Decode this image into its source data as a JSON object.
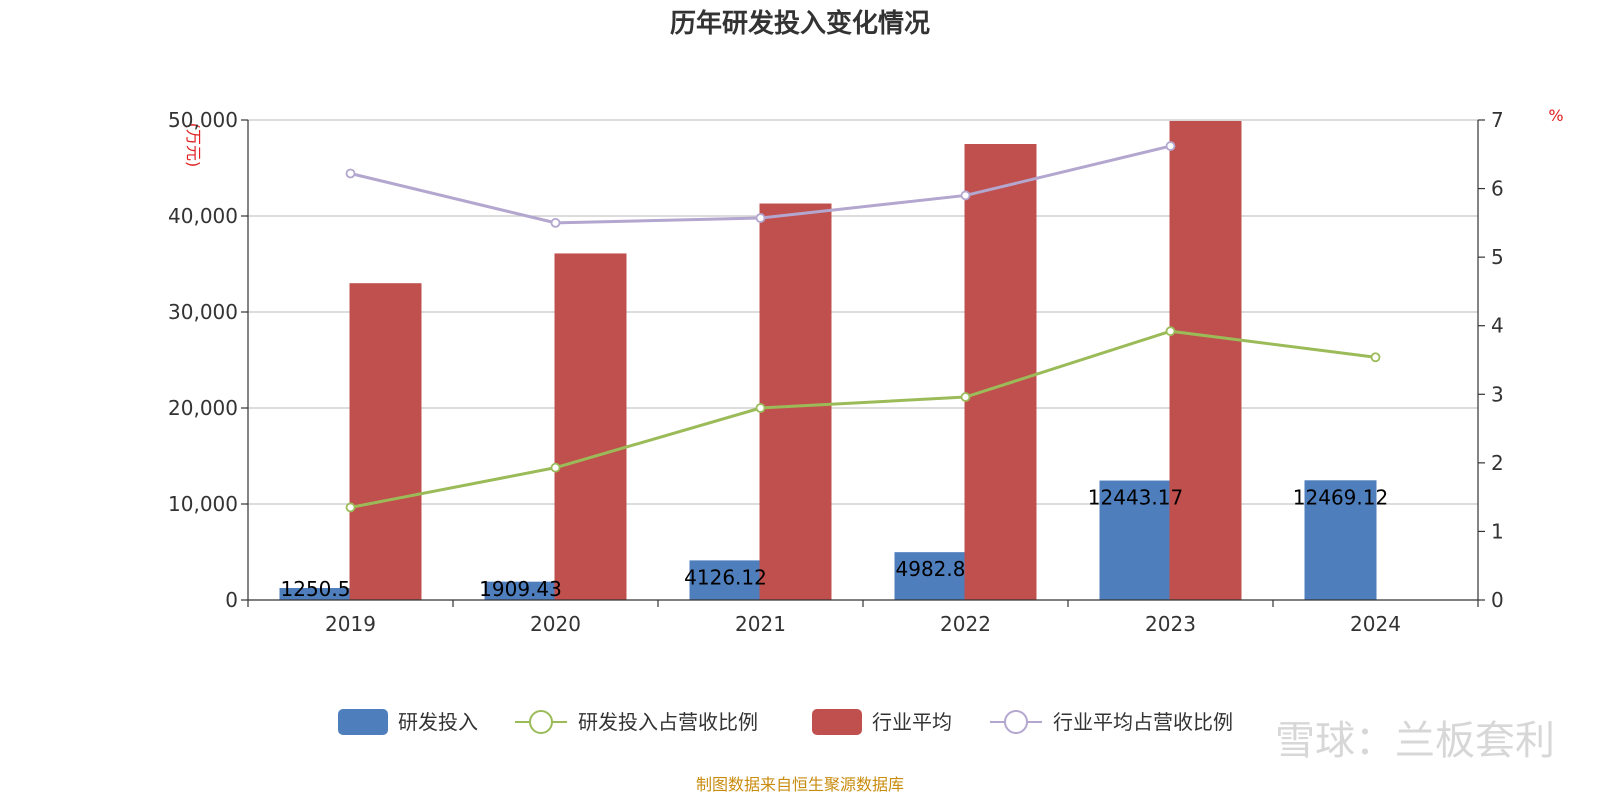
{
  "chart_data": {
    "type": "bar",
    "title": "历年研发投入变化情况",
    "categories": [
      "2019",
      "2020",
      "2021",
      "2022",
      "2023",
      "2024"
    ],
    "y_left": {
      "unit_label": "(万元)",
      "range": [
        0,
        50000
      ],
      "ticks": [
        "0",
        "10,000",
        "20,000",
        "30,000",
        "40,000",
        "50,000"
      ]
    },
    "y_right": {
      "unit_label": "%",
      "range": [
        0,
        7
      ],
      "ticks": [
        "0",
        "1",
        "2",
        "3",
        "4",
        "5",
        "6",
        "7"
      ]
    },
    "grid": true,
    "legend_position": "bottom",
    "series": [
      {
        "name": "研发投入",
        "type": "bar",
        "axis": "left",
        "color": "#4f7ebc",
        "values": [
          1250.5,
          1909.43,
          4126.12,
          4982.8,
          12443.17,
          12469.12
        ],
        "labels": [
          "1250.5",
          "1909.43",
          "4126.12",
          "4982.8",
          "12443.17",
          "12469.12"
        ]
      },
      {
        "name": "研发投入占营收比例",
        "type": "line",
        "axis": "right",
        "color": "#9bbb59",
        "values": [
          1.35,
          1.93,
          2.8,
          2.96,
          3.92,
          3.54
        ]
      },
      {
        "name": "行业平均",
        "type": "bar",
        "axis": "left",
        "color": "#c0504d",
        "values": [
          33000,
          36100,
          41300,
          47500,
          49900,
          null
        ]
      },
      {
        "name": "行业平均占营收比例",
        "type": "line",
        "axis": "right",
        "color": "#b3a6cf",
        "values": [
          6.22,
          5.5,
          5.57,
          5.9,
          6.62,
          null
        ]
      }
    ],
    "source_note": "制图数据来自恒生聚源数据库",
    "watermark": "雪球：兰板套利"
  }
}
